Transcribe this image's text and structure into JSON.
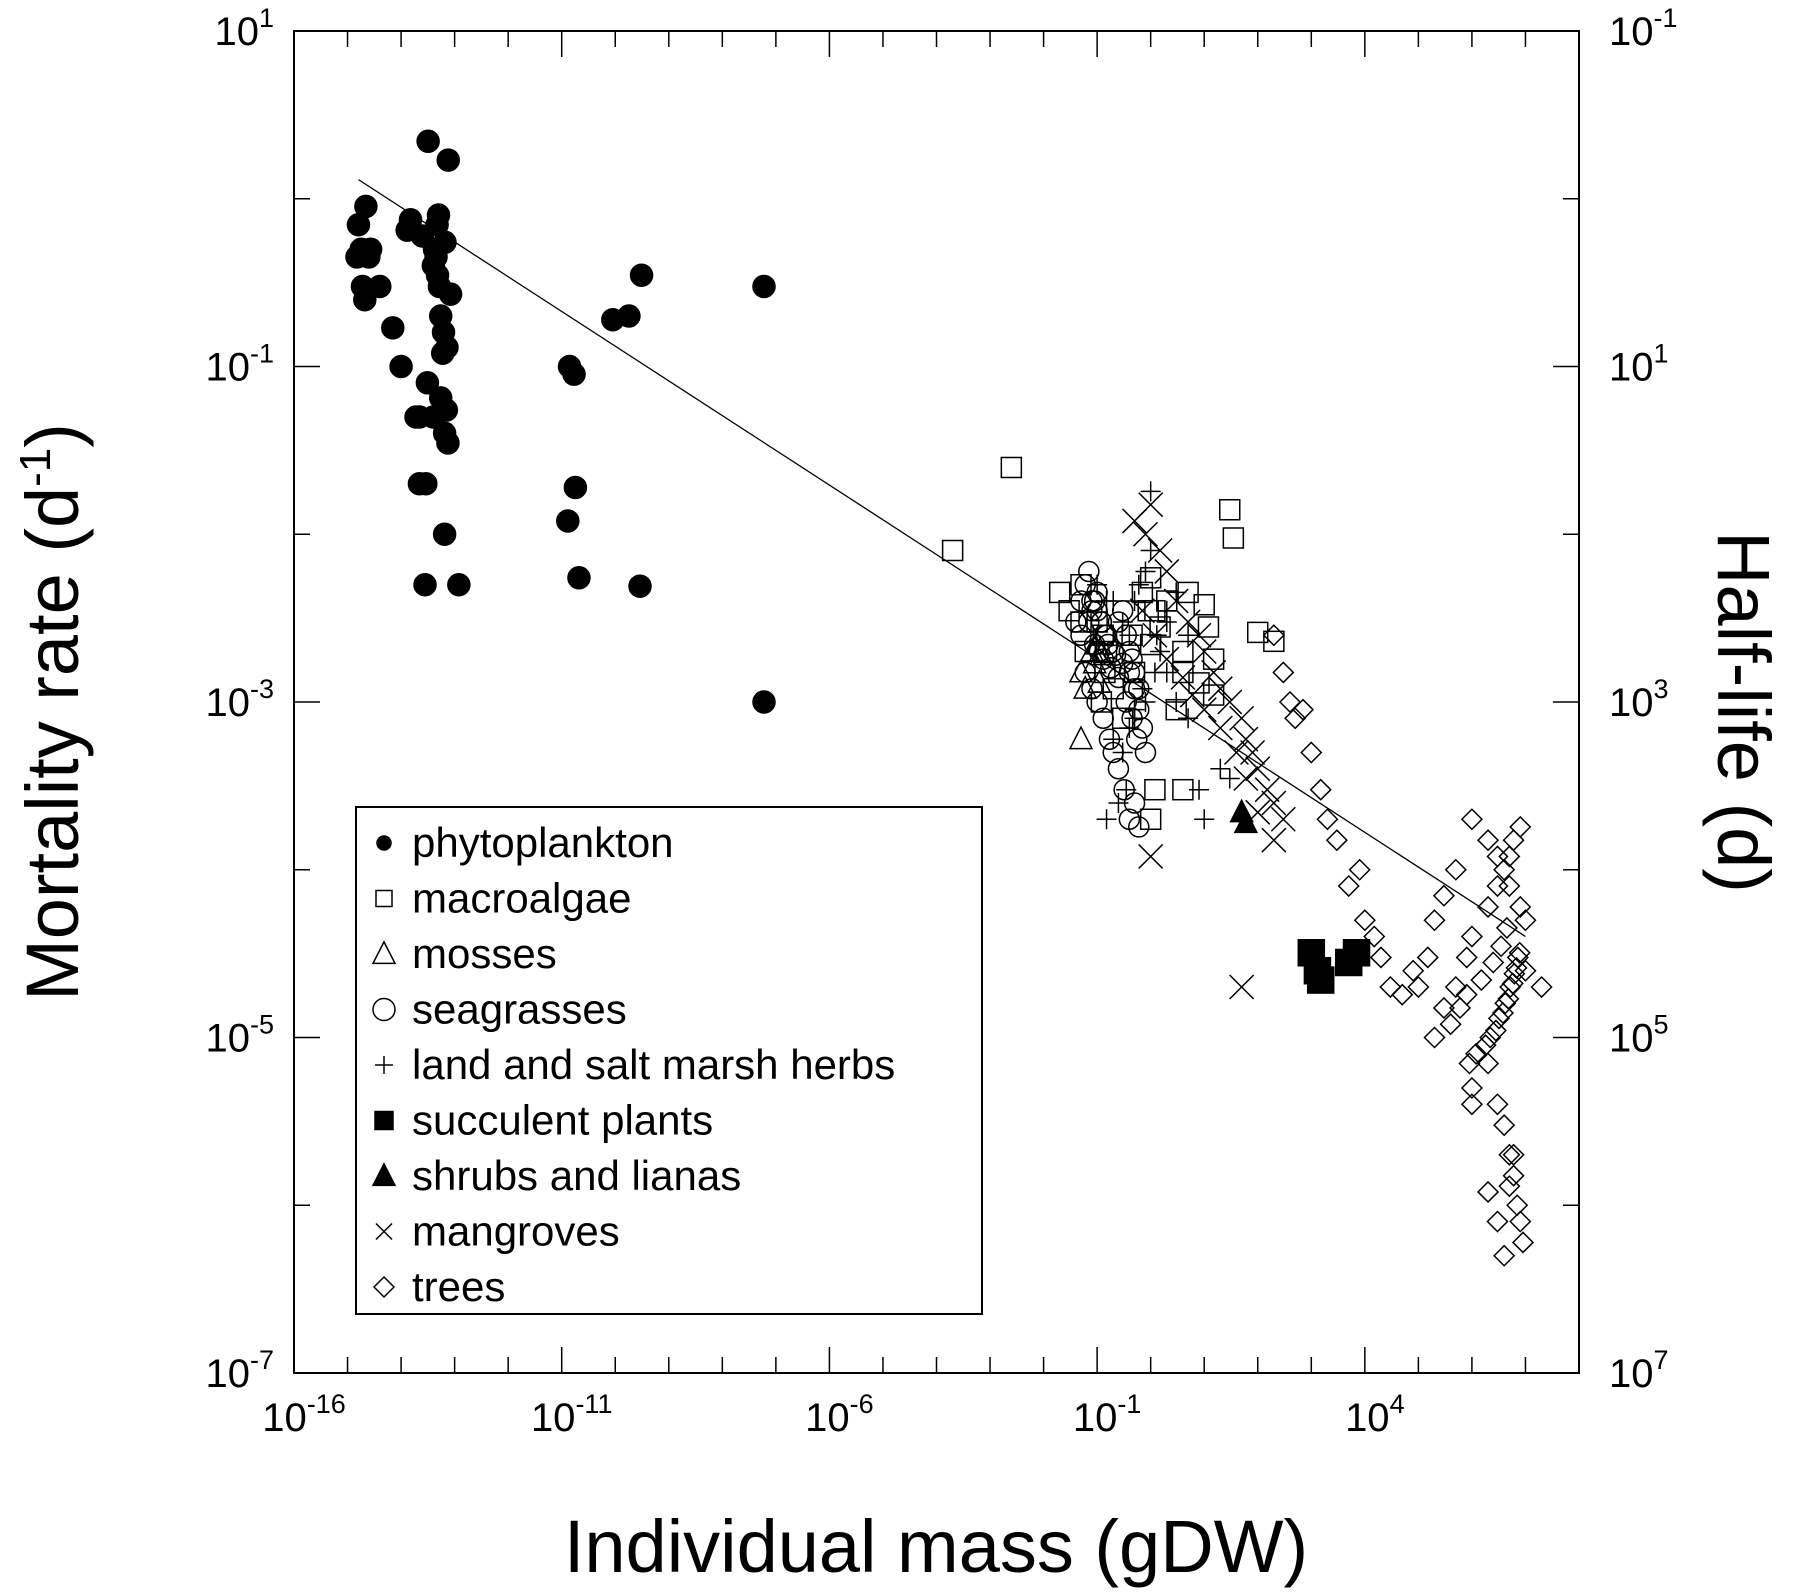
{
  "chart_data": {
    "type": "scatter",
    "xlabel": "Individual mass (gDW)",
    "ylabel": "Mortality rate (d",
    "ylabel_sup": "-1",
    "ylabel_close": ")",
    "y2label": "Half-life (d)",
    "x_scale": "log",
    "y_scale": "log",
    "xlim": [
      1e-16,
      100000000.0
    ],
    "ylim": [
      1e-07,
      10
    ],
    "x_ticks": [
      {
        "base": "10",
        "exp": "-16",
        "value": 1e-16
      },
      {
        "base": "10",
        "exp": "-11",
        "value": 1e-11
      },
      {
        "base": "10",
        "exp": "-6",
        "value": 1e-06
      },
      {
        "base": "10",
        "exp": "-1",
        "value": 0.1
      },
      {
        "base": "10",
        "exp": "4",
        "value": 10000.0
      }
    ],
    "y_ticks": [
      {
        "base": "10",
        "exp": "1",
        "value": 10
      },
      {
        "base": "10",
        "exp": "-1",
        "value": 0.1
      },
      {
        "base": "10",
        "exp": "-3",
        "value": 0.001
      },
      {
        "base": "10",
        "exp": "-5",
        "value": 1e-05
      },
      {
        "base": "10",
        "exp": "-7",
        "value": 1e-07
      }
    ],
    "y2_ticks": [
      {
        "base": "10",
        "exp": "-1",
        "at_y": 10
      },
      {
        "base": "10",
        "exp": "1",
        "at_y": 0.1
      },
      {
        "base": "10",
        "exp": "3",
        "at_y": 0.001
      },
      {
        "base": "10",
        "exp": "5",
        "at_y": 1e-05
      },
      {
        "base": "10",
        "exp": "7",
        "at_y": 1e-07
      }
    ],
    "grid": false,
    "legend_position": "bottom-left",
    "fit_line": {
      "x": [
        1.6e-15,
        10000000.0
      ],
      "y": [
        1.3,
        4e-05
      ]
    },
    "series": [
      {
        "name": "phytoplankton",
        "marker": "filled-circle",
        "x": [
          1.5e-15,
          1.6e-15,
          2.2e-15,
          1.8e-15,
          2.5e-15,
          1.9e-15,
          2.1e-15,
          4e-15,
          2.7e-15,
          7e-15,
          1e-14,
          1.3e-14,
          1.5e-14,
          1.9e-14,
          2.2e-14,
          2.8e-14,
          2.5e-14,
          3.1e-14,
          4.2e-14,
          4e-14,
          4.8e-14,
          5.2e-14,
          6e-14,
          5.5e-14,
          6.2e-14,
          5.5e-14,
          6.5e-14,
          7e-14,
          8.4e-14,
          7.2e-14,
          7.6e-14,
          6.6e-14,
          4.5e-14,
          2.9e-14,
          3.2e-14,
          1.2e-13,
          4.7e-14,
          2.2e-14,
          5e-14,
          7.5e-14,
          4e-14,
          6.5e-14,
          1.3e-11,
          1.7e-11,
          1.8e-10,
          1.8e-11,
          2.1e-11,
          1.4e-11,
          9e-11,
          3.1e-10,
          2.9e-10,
          6e-08,
          6e-08
        ],
        "y": [
          0.45,
          0.7,
          0.9,
          0.5,
          0.45,
          0.3,
          0.25,
          0.3,
          0.5,
          0.17,
          0.1,
          0.65,
          0.75,
          0.05,
          0.02,
          0.005,
          0.6,
          0.08,
          0.5,
          0.4,
          0.35,
          0.3,
          0.12,
          0.2,
          0.16,
          0.065,
          0.01,
          0.055,
          0.27,
          0.13,
          1.7,
          0.55,
          0.45,
          0.02,
          2.2,
          0.005,
          0.7,
          0.05,
          0.8,
          0.035,
          0.05,
          0.04,
          0.012,
          0.09,
          0.2,
          0.019,
          0.0055,
          0.1,
          0.19,
          0.35,
          0.0049,
          0.001,
          0.3
        ]
      },
      {
        "name": "macroalgae",
        "marker": "open-square",
        "x": [
          0.0025,
          0.0002,
          0.05,
          0.02,
          0.03,
          0.05,
          0.06,
          0.1,
          0.12,
          0.14,
          0.15,
          0.13,
          0.2,
          0.3,
          0.5,
          0.45,
          1,
          0.7,
          0.9,
          1.2,
          1.5,
          1,
          3,
          4,
          1,
          1.2,
          2,
          4,
          5,
          10,
          12,
          4,
          8,
          15,
          15,
          30,
          35,
          100,
          200
        ],
        "y": [
          0.025,
          0.008,
          0.005,
          0.0045,
          0.0035,
          0.003,
          0.002,
          0.003,
          0.001,
          0.0015,
          0.002,
          0.0025,
          0.0012,
          0.0008,
          0.0015,
          0.0025,
          0.0055,
          0.0045,
          0.0035,
          0.0035,
          0.0028,
          0.0022,
          0.0009,
          0.0003,
          0.0002,
          0.0003,
          0.004,
          0.002,
          0.0045,
          0.0038,
          0.0028,
          0.0015,
          0.0013,
          0.0011,
          0.0018,
          0.014,
          0.0095,
          0.0026,
          0.0023
        ]
      },
      {
        "name": "mosses",
        "marker": "open-triangle",
        "x": [
          0.05,
          0.06,
          0.05,
          0.08,
          0.12,
          0.1,
          0.11,
          0.09
        ],
        "y": [
          0.0006,
          0.0012,
          0.0015,
          0.002,
          0.0019,
          0.0022,
          0.0013,
          0.0017
        ]
      },
      {
        "name": "seagrasses",
        "marker": "open-circle",
        "x": [
          0.04,
          0.05,
          0.06,
          0.07,
          0.08,
          0.09,
          0.1,
          0.12,
          0.15,
          0.2,
          0.25,
          0.3,
          0.35,
          0.4,
          0.45,
          0.5,
          0.6,
          0.05,
          0.07,
          0.09,
          0.11,
          0.13,
          0.18,
          0.25,
          0.35,
          0.45,
          0.55,
          0.08,
          0.1,
          0.12,
          0.14,
          0.16,
          0.22,
          0.3,
          0.4,
          0.5,
          0.6,
          0.7,
          0.8,
          0.06,
          0.08,
          0.1,
          0.13,
          0.17,
          0.2,
          0.25,
          0.32,
          0.4,
          0.5,
          0.6
        ],
        "y": [
          0.003,
          0.004,
          0.005,
          0.006,
          0.0035,
          0.004,
          0.0045,
          0.003,
          0.0025,
          0.002,
          0.003,
          0.0035,
          0.0025,
          0.002,
          0.0018,
          0.0015,
          0.0012,
          0.0025,
          0.003,
          0.0022,
          0.002,
          0.0018,
          0.0016,
          0.0014,
          0.001,
          0.0008,
          0.0006,
          0.004,
          0.0035,
          0.003,
          0.0025,
          0.0022,
          0.0019,
          0.0017,
          0.0015,
          0.0012,
          0.0009,
          0.0007,
          0.0005,
          0.0015,
          0.0012,
          0.001,
          0.0008,
          0.0006,
          0.0005,
          0.0004,
          0.0003,
          0.0002,
          0.00025,
          0.00018
        ]
      },
      {
        "name": "land and salt marsh herbs",
        "marker": "plus",
        "x": [
          0.1,
          0.15,
          0.2,
          0.3,
          0.4,
          0.5,
          0.6,
          0.8,
          1,
          1.5,
          2,
          3,
          5,
          0.2,
          0.3,
          0.4,
          0.5,
          0.7,
          1,
          1.3,
          2,
          0.15,
          0.25,
          0.35,
          0.5,
          0.8,
          1.2,
          2,
          3,
          5,
          8,
          10,
          20,
          30,
          50
        ],
        "y": [
          0.005,
          0.004,
          0.004,
          0.003,
          0.0025,
          0.004,
          0.005,
          0.006,
          0.008,
          0.002,
          0.0015,
          0.001,
          0.0008,
          0.0006,
          0.0005,
          0.0007,
          0.0009,
          0.0012,
          0.018,
          0.0025,
          0.003,
          0.0002,
          0.00025,
          0.0003,
          0.0008,
          0.001,
          0.0015,
          0.0035,
          0.0045,
          0.0025,
          0.0003,
          0.0002,
          0.0004,
          0.00035,
          0.0002
        ]
      },
      {
        "name": "succulent plants",
        "marker": "filled-square",
        "x": [
          1000,
          1300,
          1500,
          5000,
          7000
        ],
        "y": [
          3.2e-05,
          2.5e-05,
          2.2e-05,
          2.8e-05,
          3.2e-05
        ]
      },
      {
        "name": "shrubs and lianas",
        "marker": "filled-triangle",
        "x": [
          50,
          60
        ],
        "y": [
          0.00022,
          0.00019
        ]
      },
      {
        "name": "mangroves",
        "marker": "x",
        "x": [
          0.5,
          0.8,
          1,
          1.5,
          2,
          3,
          5,
          8,
          10,
          15,
          20,
          30,
          50,
          60,
          80,
          100,
          150,
          200,
          300,
          0.7,
          1.2,
          2,
          4,
          6,
          10,
          20,
          40,
          60,
          100,
          200,
          50,
          1
        ],
        "y": [
          0.012,
          0.01,
          0.015,
          0.008,
          0.006,
          0.004,
          0.003,
          0.0025,
          0.002,
          0.0015,
          0.0012,
          0.001,
          0.0008,
          0.0006,
          0.0005,
          0.0004,
          0.0003,
          0.00025,
          0.0002,
          0.0035,
          0.0025,
          0.0018,
          0.0014,
          0.0011,
          0.0009,
          0.0007,
          0.0005,
          0.00035,
          0.00022,
          0.00015,
          2e-05,
          0.00012
        ]
      },
      {
        "name": "trees",
        "marker": "open-diamond",
        "x": [
          200,
          300,
          400,
          500,
          700,
          1000,
          1500,
          2000,
          3000,
          5000,
          8000,
          10000,
          15000,
          20000,
          30000,
          50000,
          80000,
          100000,
          150000,
          200000,
          300000,
          500000,
          1000000.0,
          2000000.0,
          3000000.0,
          5000000.0,
          8000000.0,
          10000000.0,
          300000.0,
          500000.0,
          800000.0,
          1000000.0,
          2000000.0,
          3000000.0,
          4000000.0,
          5000000.0,
          6000000.0,
          8000000.0,
          200000.0,
          400000.0,
          600000.0,
          800000.0,
          1500000.0,
          2500000.0,
          3500000.0,
          4500000.0,
          1200000.0,
          2200000.0,
          3200000.0,
          4200000.0,
          5200000.0,
          6200000.0,
          7200000.0,
          900000.0,
          1800000.0,
          2800000.0,
          3800000.0,
          4800000.0,
          5800000.0,
          6800000.0,
          7800000.0,
          1000000.0,
          2000000.0,
          3000000.0,
          4000000.0,
          5000000.0,
          6000000.0,
          7000000.0,
          8000000.0,
          9000000.0,
          10000000.0,
          20000000.0,
          1000000.0,
          2000000.0,
          3000000.0,
          4000000.0,
          5000000.0,
          6000000.0
        ],
        "y": [
          0.0025,
          0.0015,
          0.001,
          0.0008,
          0.0009,
          0.0005,
          0.0003,
          0.0002,
          0.00015,
          8e-05,
          0.0001,
          5e-05,
          4e-05,
          3e-05,
          2e-05,
          1.8e-05,
          2.5e-05,
          2e-05,
          3e-05,
          5e-05,
          7e-05,
          0.0001,
          0.0002,
          0.00015,
          0.00012,
          8e-05,
          6e-05,
          5e-05,
          1.5e-05,
          2e-05,
          3e-05,
          4e-05,
          6e-05,
          8e-05,
          0.0001,
          0.00012,
          0.00015,
          0.00018,
          1e-05,
          1.2e-05,
          1.5e-05,
          1.8e-05,
          2.2e-05,
          2.8e-05,
          3.5e-05,
          4.5e-05,
          8e-06,
          1e-05,
          1.3e-05,
          1.6e-05,
          2e-05,
          2.4e-05,
          3e-05,
          7e-06,
          9e-06,
          1.1e-05,
          1.4e-05,
          1.7e-05,
          2.1e-05,
          2.6e-05,
          3.2e-05,
          5e-06,
          7e-06,
          4e-06,
          3e-06,
          2e-06,
          1.5e-06,
          1e-06,
          8e-07,
          6e-07,
          2.5e-05,
          2e-05,
          4e-06,
          1.2e-06,
          8e-07,
          5e-07,
          1.3e-06,
          2e-06
        ]
      }
    ]
  }
}
